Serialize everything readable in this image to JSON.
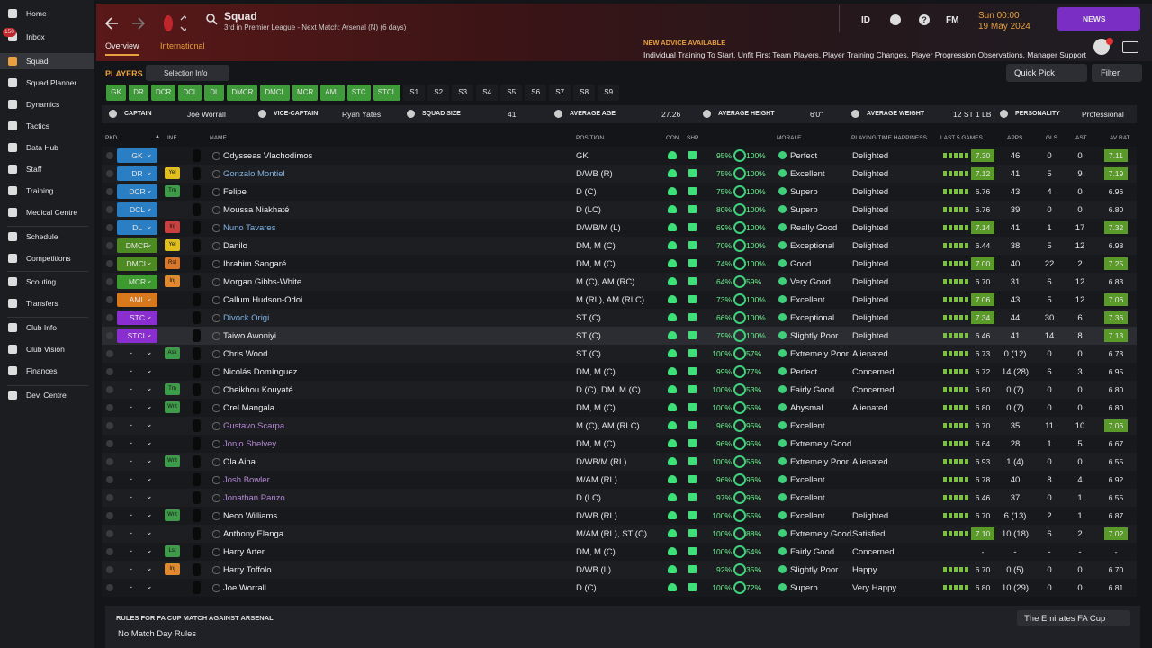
{
  "sidebar": {
    "badge": "150",
    "items": [
      "Home",
      "Inbox",
      "Squad",
      "Squad Planner",
      "Dynamics",
      "Tactics",
      "Data Hub",
      "Staff",
      "Training",
      "Medical Centre",
      "Schedule",
      "Competitions",
      "Scouting",
      "Transfers",
      "Club Info",
      "Club Vision",
      "Finances",
      "Dev. Centre"
    ]
  },
  "header": {
    "title": "Squad",
    "subtitle": "3rd in Premier League - Next Match: Arsenal (N) (6 days)",
    "id": "ID",
    "fm": "FM",
    "time": "Sun 00:00",
    "date": "19 May 2024",
    "news": "NEWS"
  },
  "tabs": [
    "Overview",
    "International"
  ],
  "advice": {
    "title": "NEW ADVICE AVAILABLE",
    "text": "Individual Training To Start, Unfit First Team Players, Player Training Changes, Player Progression Observations, Manager Support"
  },
  "toolbar": {
    "players": "PLAYERS",
    "selection": "Selection Info",
    "quick_pick": "Quick Pick",
    "filter": "Filter"
  },
  "filters": [
    {
      "label": "GK",
      "active": true
    },
    {
      "label": "DR",
      "active": true
    },
    {
      "label": "DCR",
      "active": true
    },
    {
      "label": "DCL",
      "active": true
    },
    {
      "label": "DL",
      "active": true
    },
    {
      "label": "DMCR",
      "active": true
    },
    {
      "label": "DMCL",
      "active": true
    },
    {
      "label": "MCR",
      "active": true
    },
    {
      "label": "AML",
      "active": true
    },
    {
      "label": "STC",
      "active": true
    },
    {
      "label": "STCL",
      "active": true
    },
    {
      "label": "S1",
      "active": false
    },
    {
      "label": "S2",
      "active": false
    },
    {
      "label": "S3",
      "active": false
    },
    {
      "label": "S4",
      "active": false
    },
    {
      "label": "S5",
      "active": false
    },
    {
      "label": "S6",
      "active": false
    },
    {
      "label": "S7",
      "active": false
    },
    {
      "label": "S8",
      "active": false
    },
    {
      "label": "S9",
      "active": false
    }
  ],
  "summary": [
    {
      "label": "CAPTAIN",
      "value": "Joe Worrall"
    },
    {
      "label": "VICE-CAPTAIN",
      "value": "Ryan Yates"
    },
    {
      "label": "SQUAD SIZE",
      "value": "41"
    },
    {
      "label": "AVERAGE AGE",
      "value": "27.26"
    },
    {
      "label": "AVERAGE HEIGHT",
      "value": "6'0\""
    },
    {
      "label": "AVERAGE WEIGHT",
      "value": "12 ST 1 LB"
    },
    {
      "label": "PERSONALITY",
      "value": "Professional"
    }
  ],
  "columns": [
    "PKD",
    "INF",
    "NAME",
    "POSITION",
    "CON",
    "SHP",
    "MORALE",
    "PLAYING TIME HAPPINESS",
    "LAST 5 GAMES",
    "APPS",
    "GLS",
    "AST",
    "AV RAT"
  ],
  "rows": [
    {
      "pkd": "GK",
      "pkd_color": "#2a7fc4",
      "name": "Odysseas Vlachodimos",
      "position": "GK",
      "con": "95%",
      "shp": "100%",
      "morale": "Perfect",
      "happiness": "Delighted",
      "last5": "7.30",
      "apps": "46",
      "gls": "0",
      "ast": "0",
      "av_rat": "7.11"
    },
    {
      "pkd": "DR",
      "pkd_color": "#2a7fc4",
      "inf": "Yel",
      "inf_color": "#e0c020",
      "name": "Gonzalo Montiel",
      "name_color": "#7fb2e5",
      "position": "D/WB (R)",
      "con": "75%",
      "shp": "100%",
      "morale": "Excellent",
      "happiness": "Delighted",
      "last5": "7.12",
      "apps": "41",
      "gls": "5",
      "ast": "9",
      "av_rat": "7.19"
    },
    {
      "pkd": "DCR",
      "pkd_color": "#2a7fc4",
      "inf": "Tm",
      "inf_color": "#3f9a4a",
      "name": "Felipe",
      "position": "D (C)",
      "con": "75%",
      "shp": "100%",
      "morale": "Superb",
      "happiness": "Delighted",
      "last5": "6.76",
      "apps": "43",
      "gls": "4",
      "ast": "0",
      "av_rat": "6.96"
    },
    {
      "pkd": "DCL",
      "pkd_color": "#2a7fc4",
      "name": "Moussa Niakhaté",
      "position": "D (LC)",
      "con": "80%",
      "shp": "100%",
      "morale": "Superb",
      "happiness": "Delighted",
      "last5": "6.76",
      "apps": "39",
      "gls": "0",
      "ast": "0",
      "av_rat": "6.80"
    },
    {
      "pkd": "DL",
      "pkd_color": "#2a7fc4",
      "inf": "Inj",
      "inf_color": "#c84040",
      "name": "Nuno Tavares",
      "name_color": "#7fb2e5",
      "position": "D/WB/M (L)",
      "con": "69%",
      "shp": "100%",
      "morale": "Really Good",
      "happiness": "Delighted",
      "last5": "7.14",
      "apps": "41",
      "gls": "1",
      "ast": "17",
      "av_rat": "7.32"
    },
    {
      "pkd": "DMCR",
      "pkd_color": "#4d8a22",
      "inf": "Yel",
      "inf_color": "#e0c020",
      "name": "Danilo",
      "position": "DM, M (C)",
      "con": "70%",
      "shp": "100%",
      "morale": "Exceptional",
      "happiness": "Delighted",
      "last5": "6.44",
      "apps": "38",
      "gls": "5",
      "ast": "12",
      "av_rat": "6.98"
    },
    {
      "pkd": "DMCL",
      "pkd_color": "#4d8a22",
      "inf": "Rst",
      "inf_color": "#d9782a",
      "name": "Ibrahim Sangaré",
      "position": "DM, M (C)",
      "con": "74%",
      "shp": "100%",
      "morale": "Good",
      "happiness": "Delighted",
      "last5": "7.00",
      "apps": "40",
      "gls": "22",
      "ast": "2",
      "av_rat": "7.25"
    },
    {
      "pkd": "MCR",
      "pkd_color": "#3d9a2e",
      "inf": "Inj",
      "inf_color": "#e08a30",
      "name": "Morgan Gibbs-White",
      "position": "M (C), AM (RC)",
      "con": "64%",
      "shp": "59%",
      "morale": "Very Good",
      "happiness": "Delighted",
      "last5": "6.70",
      "apps": "31",
      "gls": "6",
      "ast": "12",
      "av_rat": "6.83"
    },
    {
      "pkd": "AML",
      "pkd_color": "#d8781c",
      "name": "Callum Hudson-Odoi",
      "position": "M (RL), AM (RLC)",
      "con": "73%",
      "shp": "100%",
      "morale": "Excellent",
      "happiness": "Delighted",
      "last5": "7.06",
      "apps": "43",
      "gls": "5",
      "ast": "12",
      "av_rat": "7.06"
    },
    {
      "pkd": "STC",
      "pkd_color": "#8a2ed0",
      "name": "Divock Origi",
      "name_color": "#7fb2e5",
      "position": "ST (C)",
      "con": "66%",
      "shp": "100%",
      "morale": "Exceptional",
      "happiness": "Delighted",
      "last5": "7.34",
      "apps": "44",
      "gls": "30",
      "ast": "6",
      "av_rat": "7.36"
    },
    {
      "pkd": "STCL",
      "pkd_color": "#8a2ed0",
      "name": "Taiwo Awoniyi",
      "position": "ST (C)",
      "con": "79%",
      "shp": "100%",
      "morale": "Slightly Poor",
      "happiness": "Delighted",
      "last5": "6.46",
      "apps": "41",
      "gls": "14",
      "ast": "8",
      "av_rat": "7.13"
    },
    {
      "pkd": "-",
      "inf": "Ask",
      "inf_color": "#3f9a4a",
      "name": "Chris Wood",
      "position": "ST (C)",
      "con": "100%",
      "shp": "57%",
      "morale": "Extremely Poor",
      "happiness": "Alienated",
      "last5": "6.73",
      "apps": "0 (12)",
      "gls": "0",
      "ast": "0",
      "av_rat": "6.73"
    },
    {
      "pkd": "-",
      "name": "Nicolás Domínguez",
      "position": "DM, M (C)",
      "con": "99%",
      "shp": "77%",
      "morale": "Perfect",
      "happiness": "Concerned",
      "last5": "6.72",
      "apps": "14 (28)",
      "gls": "6",
      "ast": "3",
      "av_rat": "6.95"
    },
    {
      "pkd": "-",
      "inf": "Tm",
      "inf_color": "#3f9a4a",
      "name": "Cheikhou Kouyaté",
      "position": "D (C), DM, M (C)",
      "con": "100%",
      "shp": "53%",
      "morale": "Fairly Good",
      "happiness": "Concerned",
      "last5": "6.80",
      "apps": "0 (7)",
      "gls": "0",
      "ast": "0",
      "av_rat": "6.80"
    },
    {
      "pkd": "-",
      "inf": "Wnt",
      "inf_color": "#3f9a4a",
      "name": "Orel Mangala",
      "position": "DM, M (C)",
      "con": "100%",
      "shp": "55%",
      "morale": "Abysmal",
      "happiness": "Alienated",
      "last5": "6.80",
      "apps": "0 (7)",
      "gls": "0",
      "ast": "0",
      "av_rat": "6.80"
    },
    {
      "pkd": "-",
      "name": "Gustavo Scarpa",
      "name_color": "#b58ad6",
      "position": "M (C), AM (RLC)",
      "con": "96%",
      "shp": "95%",
      "morale": "Excellent",
      "last5": "6.70",
      "apps": "35",
      "gls": "11",
      "ast": "10",
      "av_rat": "7.06"
    },
    {
      "pkd": "-",
      "name": "Jonjo Shelvey",
      "name_color": "#b58ad6",
      "position": "DM, M (C)",
      "con": "96%",
      "shp": "95%",
      "morale": "Extremely Good",
      "last5": "6.64",
      "apps": "28",
      "gls": "1",
      "ast": "5",
      "av_rat": "6.67"
    },
    {
      "pkd": "-",
      "inf": "Wnt",
      "inf_color": "#3f9a4a",
      "name": "Ola Aina",
      "position": "D/WB/M (RL)",
      "con": "100%",
      "shp": "56%",
      "morale": "Extremely Poor",
      "happiness": "Alienated",
      "last5": "6.93",
      "apps": "1 (4)",
      "gls": "0",
      "ast": "0",
      "av_rat": "6.55"
    },
    {
      "pkd": "-",
      "name": "Josh Bowler",
      "name_color": "#b58ad6",
      "position": "M/AM (RL)",
      "con": "96%",
      "shp": "96%",
      "morale": "Excellent",
      "last5": "6.78",
      "apps": "40",
      "gls": "8",
      "ast": "4",
      "av_rat": "6.92"
    },
    {
      "pkd": "-",
      "name": "Jonathan Panzo",
      "name_color": "#b58ad6",
      "position": "D (LC)",
      "con": "97%",
      "shp": "96%",
      "morale": "Excellent",
      "last5": "6.46",
      "apps": "37",
      "gls": "0",
      "ast": "1",
      "av_rat": "6.55"
    },
    {
      "pkd": "-",
      "inf": "Wnt",
      "inf_color": "#3f9a4a",
      "name": "Neco Williams",
      "position": "D/WB (RL)",
      "con": "100%",
      "shp": "55%",
      "morale": "Excellent",
      "happiness": "Delighted",
      "last5": "6.70",
      "apps": "6 (13)",
      "gls": "2",
      "ast": "1",
      "av_rat": "6.87"
    },
    {
      "pkd": "-",
      "name": "Anthony Elanga",
      "position": "M/AM (RL), ST (C)",
      "con": "100%",
      "shp": "88%",
      "morale": "Extremely Good",
      "happiness": "Satisfied",
      "last5": "7.10",
      "apps": "10 (18)",
      "gls": "6",
      "ast": "2",
      "av_rat": "7.02"
    },
    {
      "pkd": "-",
      "inf": "Lst",
      "inf_color": "#3f9a4a",
      "name": "Harry Arter",
      "position": "DM, M (C)",
      "con": "100%",
      "shp": "54%",
      "morale": "Fairly Good",
      "happiness": "Concerned",
      "last5": "-",
      "apps": "-",
      "gls": "-",
      "ast": "-",
      "av_rat": "-"
    },
    {
      "pkd": "-",
      "inf": "Inj",
      "inf_color": "#e08a30",
      "name": "Harry Toffolo",
      "position": "D/WB (L)",
      "con": "92%",
      "shp": "35%",
      "morale": "Slightly Poor",
      "happiness": "Happy",
      "last5": "6.70",
      "apps": "0 (5)",
      "gls": "0",
      "ast": "0",
      "av_rat": "6.70"
    },
    {
      "pkd": "-",
      "name": "Joe Worrall",
      "position": "D (C)",
      "con": "100%",
      "shp": "72%",
      "morale": "Superb",
      "happiness": "Very Happy",
      "last5": "6.80",
      "apps": "10 (29)",
      "gls": "0",
      "ast": "0",
      "av_rat": "6.81"
    }
  ],
  "footer": {
    "title": "RULES FOR FA CUP MATCH AGAINST ARSENAL",
    "rules": "No Match Day Rules",
    "competition": "The Emirates FA Cup"
  }
}
